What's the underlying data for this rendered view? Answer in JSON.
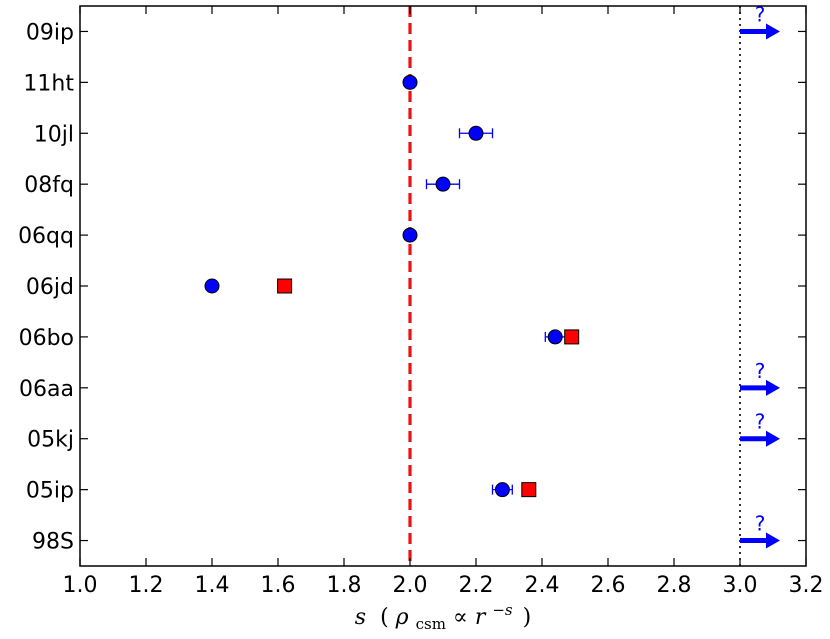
{
  "chart_data": {
    "type": "scatter",
    "title": "",
    "xlabel": {
      "var": "s",
      "paren_open": "(",
      "rho": "ρ",
      "sub": "csm",
      "prop": "∝",
      "r": "r",
      "sup": "−s",
      "paren_close": ")"
    },
    "ylabel": "",
    "xlim": [
      1.0,
      3.2
    ],
    "xticks": [
      "1.0",
      "1.2",
      "1.4",
      "1.6",
      "1.8",
      "2.0",
      "2.2",
      "2.4",
      "2.6",
      "2.8",
      "3.0",
      "3.2"
    ],
    "categories": [
      "09ip",
      "11ht",
      "10jl",
      "08fq",
      "06qq",
      "06jd",
      "06bo",
      "06aa",
      "05kj",
      "05ip",
      "98S"
    ],
    "grid": false,
    "reference_lines": [
      {
        "x": 2.0,
        "style": "dashed",
        "color": "#ee1111"
      },
      {
        "x": 3.0,
        "style": "dotted",
        "color": "#000000"
      }
    ],
    "series": [
      {
        "marker": "circle",
        "color": "#0000ff",
        "points": [
          {
            "category": "11ht",
            "x": 2.0,
            "err": 0
          },
          {
            "category": "10jl",
            "x": 2.2,
            "err": 0.05
          },
          {
            "category": "08fq",
            "x": 2.1,
            "err": 0.05
          },
          {
            "category": "06qq",
            "x": 2.0,
            "err": 0
          },
          {
            "category": "06jd",
            "x": 1.4,
            "err": 0
          },
          {
            "category": "06bo",
            "x": 2.44,
            "err": 0.03
          },
          {
            "category": "05ip",
            "x": 2.28,
            "err": 0.03
          }
        ]
      },
      {
        "marker": "square",
        "color": "#ff0000",
        "points": [
          {
            "category": "06jd",
            "x": 1.62
          },
          {
            "category": "06bo",
            "x": 2.49
          },
          {
            "category": "05ip",
            "x": 2.36
          }
        ]
      }
    ],
    "lower_limits": {
      "marker": "right-arrow",
      "color": "#0000ff",
      "label": "?",
      "from_x": 3.0,
      "categories": [
        "09ip",
        "06aa",
        "05kj",
        "98S"
      ]
    }
  }
}
